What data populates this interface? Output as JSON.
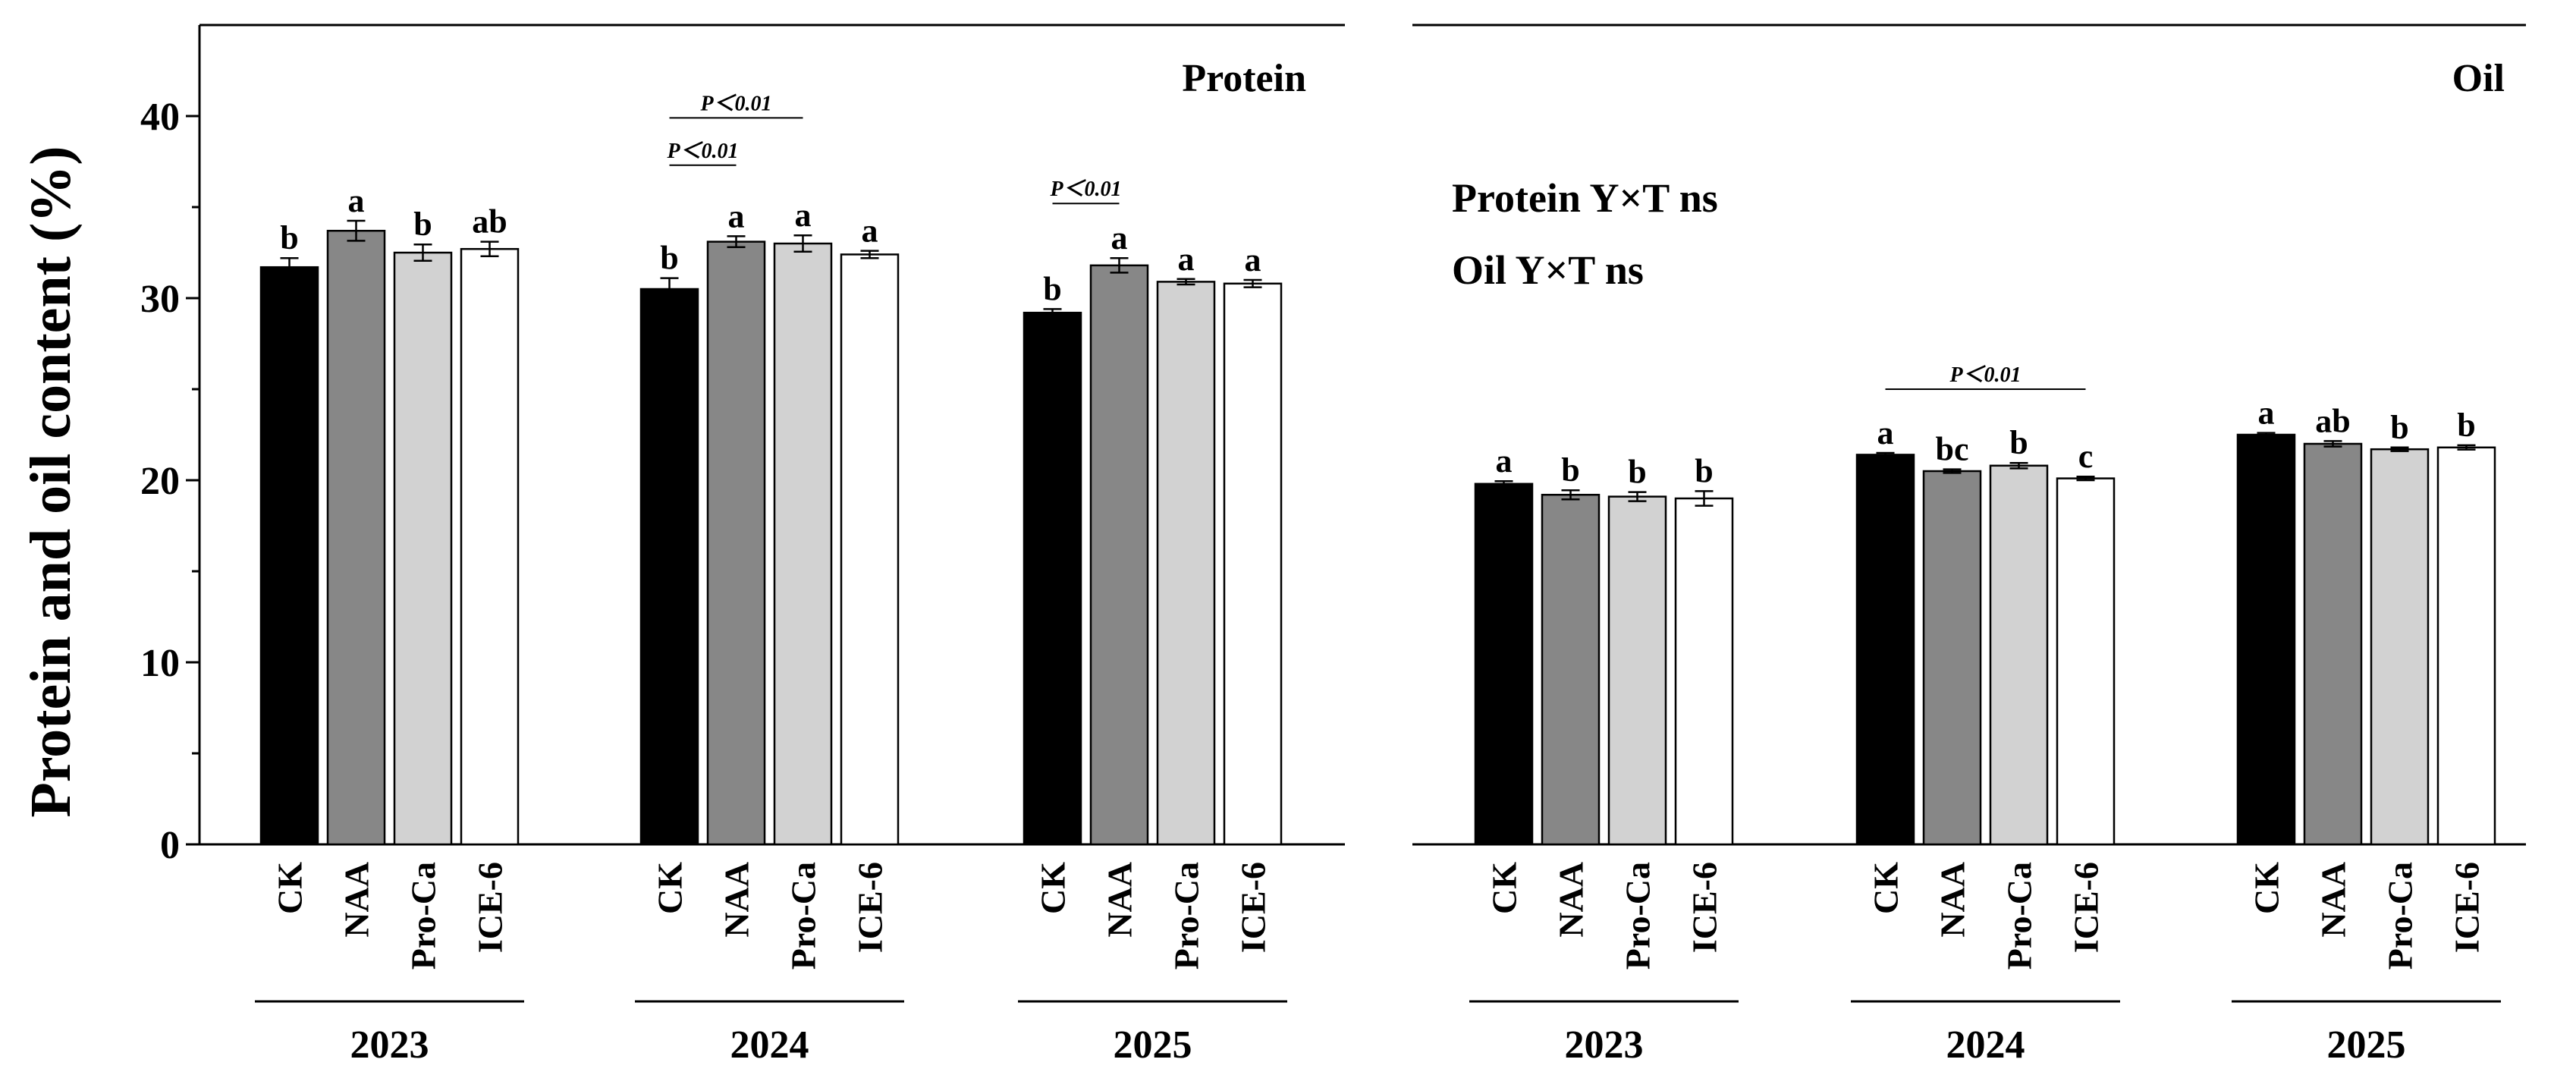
{
  "chart_data": {
    "type": "bar",
    "ylabel": "Protein and oil content (%)",
    "ylim": [
      0,
      45
    ],
    "yticks": [
      0,
      10,
      20,
      30,
      40
    ],
    "categories": [
      "CK",
      "NAA",
      "Pro-Ca",
      "ICE-6"
    ],
    "colors": {
      "CK": "#000000",
      "NAA": "#878787",
      "Pro-Ca": "#d2d2d2",
      "ICE-6": "#ffffff"
    },
    "annotations": [
      "Protein  Y×T ns",
      "Oil  Y×T ns"
    ],
    "panels": [
      {
        "title": "Protein",
        "groups": [
          {
            "year": "2023",
            "values": [
              31.7,
              33.7,
              32.5,
              32.7
            ],
            "errors": [
              0.5,
              0.55,
              0.45,
              0.4
            ],
            "letters": [
              "b",
              "a",
              "b",
              "ab"
            ],
            "significance": []
          },
          {
            "year": "2024",
            "values": [
              30.5,
              33.1,
              33.0,
              32.4
            ],
            "errors": [
              0.6,
              0.3,
              0.45,
              0.2
            ],
            "letters": [
              "b",
              "a",
              "a",
              "a"
            ],
            "significance": [
              {
                "label": "P＜0.01",
                "from": 0,
                "to": 1,
                "y": 37.3
              },
              {
                "label": "P＜0.01",
                "from": 0,
                "to": 2,
                "y": 39.9
              }
            ]
          },
          {
            "year": "2025",
            "values": [
              29.2,
              31.8,
              30.9,
              30.8
            ],
            "errors": [
              0.2,
              0.4,
              0.15,
              0.2
            ],
            "letters": [
              "b",
              "a",
              "a",
              "a"
            ],
            "significance": [
              {
                "label": "P＜0.01",
                "from": 0,
                "to": 1,
                "y": 35.2
              }
            ]
          }
        ]
      },
      {
        "title": "Oil",
        "groups": [
          {
            "year": "2023",
            "values": [
              19.8,
              19.2,
              19.1,
              19.0
            ],
            "errors": [
              0.15,
              0.25,
              0.25,
              0.4
            ],
            "letters": [
              "a",
              "b",
              "b",
              "b"
            ],
            "significance": []
          },
          {
            "year": "2024",
            "values": [
              21.4,
              20.5,
              20.8,
              20.1
            ],
            "errors": [
              0.1,
              0.1,
              0.15,
              0.1
            ],
            "letters": [
              "a",
              "bc",
              "b",
              "c"
            ],
            "significance": [
              {
                "label": "P＜0.01",
                "from": 0,
                "to": 3,
                "y": 25.0
              }
            ]
          },
          {
            "year": "2025",
            "values": [
              22.5,
              22.0,
              21.7,
              21.8
            ],
            "errors": [
              0.1,
              0.15,
              0.1,
              0.12
            ],
            "letters": [
              "a",
              "ab",
              "b",
              "b"
            ],
            "significance": []
          }
        ]
      }
    ]
  }
}
